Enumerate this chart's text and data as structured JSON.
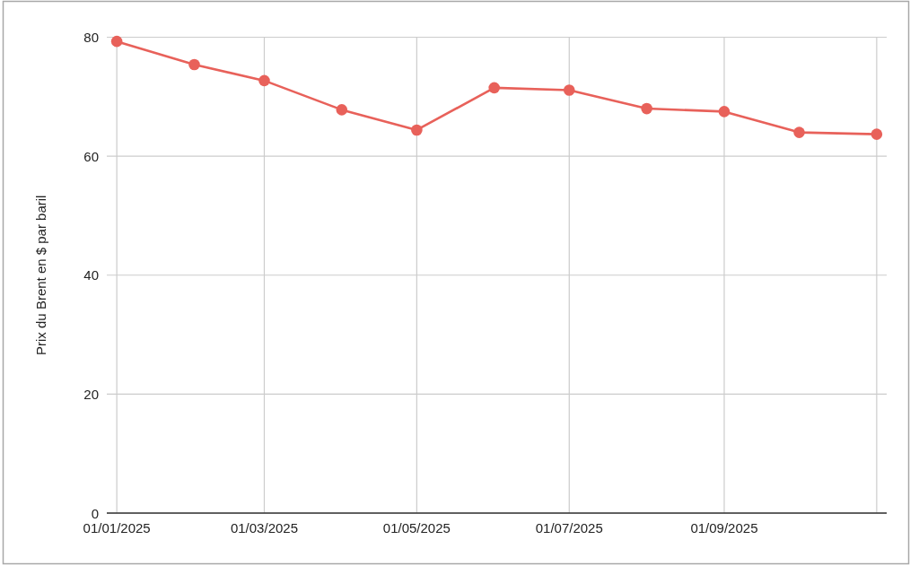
{
  "chart_data": {
    "type": "line",
    "ylabel": "Prix du Brent en $ par baril",
    "x": [
      "2025-01-01",
      "2025-02-01",
      "2025-03-01",
      "2025-04-01",
      "2025-05-01",
      "2025-06-01",
      "2025-07-01",
      "2025-08-01",
      "2025-09-01",
      "2025-10-01",
      "2025-11-01"
    ],
    "series": [
      {
        "color": "#e8615a",
        "values": [
          79.3,
          75.4,
          72.7,
          67.8,
          64.4,
          71.5,
          71.1,
          68.0,
          67.5,
          64.0,
          63.7
        ]
      }
    ],
    "xlim": [
      "2024-12-28",
      "2025-11-05"
    ],
    "xticks": [
      {
        "value": "2025-01-01",
        "label": "01/01/2025"
      },
      {
        "value": "2025-03-01",
        "label": "01/03/2025"
      },
      {
        "value": "2025-05-01",
        "label": "01/05/2025"
      },
      {
        "value": "2025-07-01",
        "label": "01/07/2025"
      },
      {
        "value": "2025-09-01",
        "label": "01/09/2025"
      },
      {
        "value": "2025-11-01",
        "label": null
      }
    ],
    "ylim": [
      0,
      80
    ],
    "yticks": [
      0,
      20,
      40,
      60,
      80
    ],
    "grid": true,
    "marker": "circle",
    "line_style": "solid"
  }
}
